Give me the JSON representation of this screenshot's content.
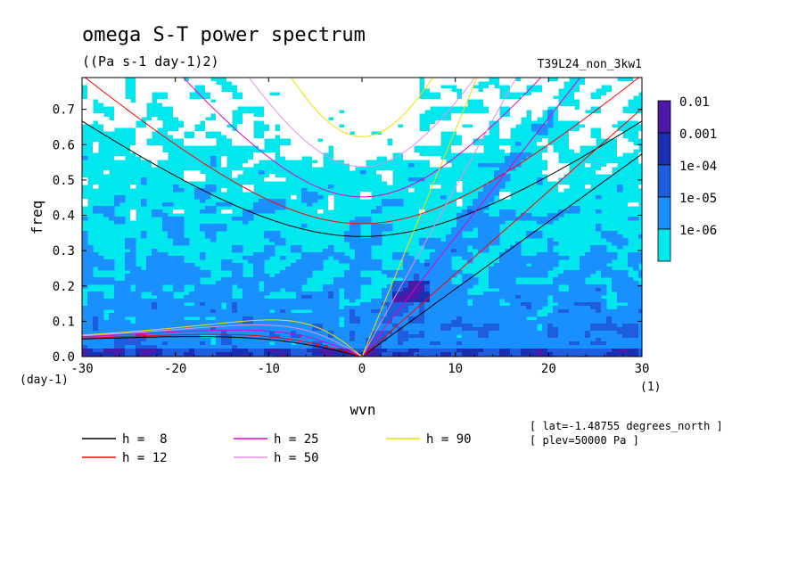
{
  "chart_data": {
    "type": "heatmap",
    "title": "omega S-T power spectrum",
    "subtitle": "((Pa s-1 day-1)2)",
    "run_label": "T39L24_non_3kw1",
    "xlabel": "wvn",
    "ylabel": "freq",
    "x_unit": "(1)",
    "y_unit": "(day-1)",
    "xlim": [
      -30,
      30
    ],
    "ylim": [
      0,
      0.79
    ],
    "x_ticks": [
      -30,
      -20,
      -10,
      0,
      10,
      20,
      30
    ],
    "x_tick_labels": [
      "-30",
      "-20",
      "-10",
      "0",
      "10",
      "20",
      "30"
    ],
    "y_ticks": [
      0,
      0.1,
      0.2,
      0.3,
      0.4,
      0.5,
      0.6,
      0.7
    ],
    "y_tick_labels": [
      "0.0",
      "0.1",
      "0.2",
      "0.3",
      "0.4",
      "0.5",
      "0.6",
      "0.7"
    ],
    "colorbar": {
      "labels": [
        "0.01",
        "0.001",
        "1e-04",
        "1e-05",
        "1e-06"
      ],
      "colors": [
        "#4b1aa8",
        "#1b2fb5",
        "#1e5de0",
        "#1a90ff",
        "#00e8ee"
      ]
    },
    "field_colors": {
      "low": "#ffffff",
      "l1": "#00e8ee",
      "l2": "#1a90ff",
      "l3": "#1e5de0",
      "l4": "#1b2fb5",
      "l5": "#4b1aa8"
    },
    "series": [
      {
        "name": "h =  8",
        "h": 8,
        "color": "#000000"
      },
      {
        "name": "h = 12",
        "h": 12,
        "color": "#ff0000"
      },
      {
        "name": "h = 25",
        "h": 25,
        "color": "#e000c8"
      },
      {
        "name": "h = 50",
        "h": 50,
        "color": "#e090e8"
      },
      {
        "name": "h = 90",
        "h": 90,
        "color": "#f0e000"
      }
    ],
    "annotations": [
      "[ lat=-1.48755 degrees_north ]",
      "[ plev=50000 Pa ]"
    ]
  }
}
